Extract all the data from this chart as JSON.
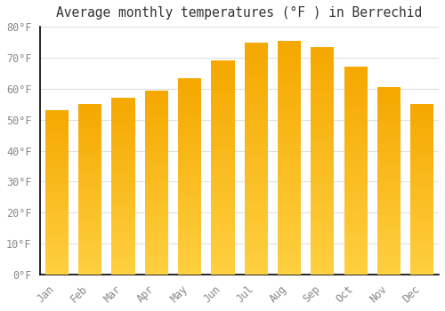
{
  "title": "Average monthly temperatures (°F ) in Berrechid",
  "months": [
    "Jan",
    "Feb",
    "Mar",
    "Apr",
    "May",
    "Jun",
    "Jul",
    "Aug",
    "Sep",
    "Oct",
    "Nov",
    "Dec"
  ],
  "values": [
    53,
    55,
    57,
    59.5,
    63.5,
    69,
    75,
    75.5,
    73.5,
    67,
    60.5,
    55
  ],
  "ylim": [
    0,
    80
  ],
  "ytick_step": 10,
  "background_color": "#ffffff",
  "grid_color": "#e0e0e0",
  "title_fontsize": 10.5,
  "tick_fontsize": 8.5,
  "bar_color_bottom": "#FFD040",
  "bar_color_top": "#F5A800",
  "bar_width": 0.7,
  "tick_color": "#888888",
  "spine_color": "#000000"
}
